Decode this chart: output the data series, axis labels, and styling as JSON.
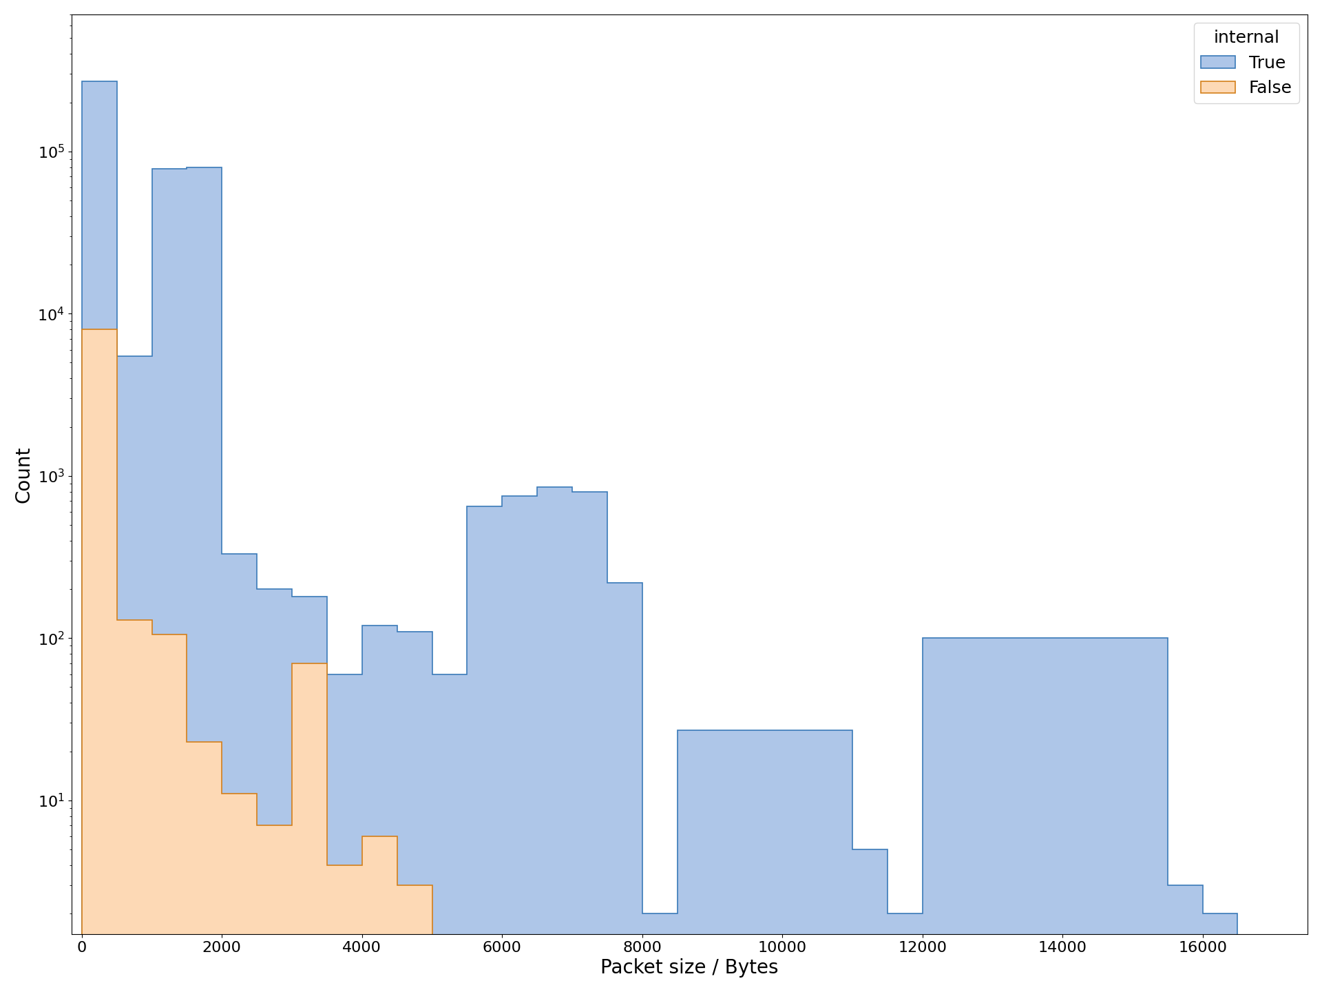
{
  "xlabel": "Packet size / Bytes",
  "ylabel": "Count",
  "legend_title": "internal",
  "true_label": "True",
  "false_label": "False",
  "true_color_face": "#aec6e8",
  "true_color_edge": "#3a7ab8",
  "false_color_face": "#fdd9b5",
  "false_color_edge": "#d47f1a",
  "xlim": [
    -150,
    17500
  ],
  "ylim": [
    1.5,
    700000
  ],
  "true_bin_edges": [
    0,
    500,
    1000,
    1500,
    2000,
    2500,
    3000,
    3500,
    4000,
    4500,
    5000,
    5500,
    6000,
    6500,
    7000,
    7500,
    8000,
    8500,
    11000,
    11500,
    12000,
    15500,
    16000,
    16500
  ],
  "true_counts": [
    270000,
    5500,
    78000,
    80000,
    330,
    200,
    180,
    60,
    120,
    110,
    60,
    650,
    750,
    850,
    800,
    220,
    2,
    27,
    5,
    2,
    100,
    3,
    2
  ],
  "false_bin_edges": [
    0,
    500,
    1000,
    1500,
    2000,
    2500,
    3000,
    3500,
    4000,
    4500,
    5000
  ],
  "false_counts": [
    8000,
    130,
    105,
    23,
    11,
    7,
    70,
    4,
    6,
    3
  ]
}
